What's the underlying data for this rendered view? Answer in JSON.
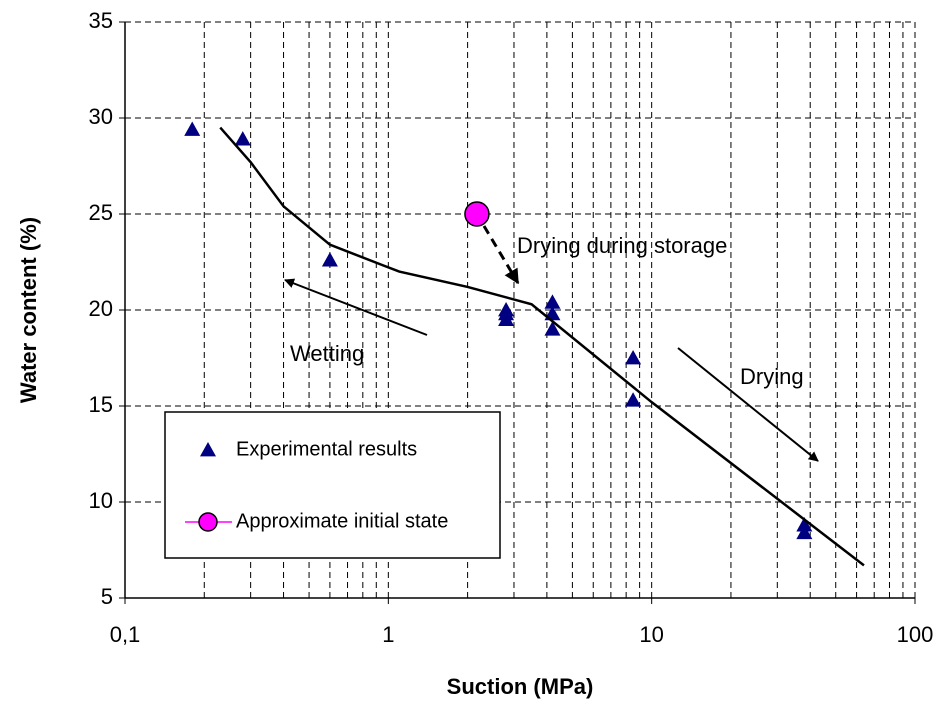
{
  "chart_data": {
    "type": "scatter",
    "xlabel": "Suction (MPa)",
    "ylabel": "Water content (%)",
    "xscale": "log",
    "xlim": [
      0.1,
      100
    ],
    "ylim": [
      5,
      35
    ],
    "xticks": [
      {
        "value": 0.1,
        "label": "0,1"
      },
      1,
      10,
      100
    ],
    "yticks": [
      5,
      10,
      15,
      20,
      25,
      30,
      35
    ],
    "grid": true,
    "series": [
      {
        "name": "Experimental results",
        "color": "#000080",
        "marker": "triangle",
        "x": [
          0.18,
          0.28,
          0.6,
          2.8,
          2.8,
          2.8,
          4.2,
          4.2,
          4.2,
          8.5,
          8.5,
          38,
          38
        ],
        "values": [
          29.4,
          28.9,
          22.6,
          20.0,
          19.8,
          19.5,
          20.4,
          19.8,
          19.0,
          17.5,
          15.3,
          8.8,
          8.4
        ]
      },
      {
        "name": "Approximate initial state",
        "color": "#ff00ff",
        "marker": "circle",
        "x": [
          2.17
        ],
        "values": [
          25
        ]
      },
      {
        "color": "#000000",
        "marker": "line",
        "x": [
          0.23,
          0.3,
          0.4,
          0.6,
          1.1,
          2.0,
          3.5,
          10,
          64
        ],
        "values": [
          29.5,
          27.7,
          25.4,
          23.4,
          22.0,
          21.2,
          20.3,
          15.2,
          6.7
        ]
      }
    ],
    "annotations": [
      "Drying during storage",
      "Wetting",
      "Drying"
    ]
  }
}
